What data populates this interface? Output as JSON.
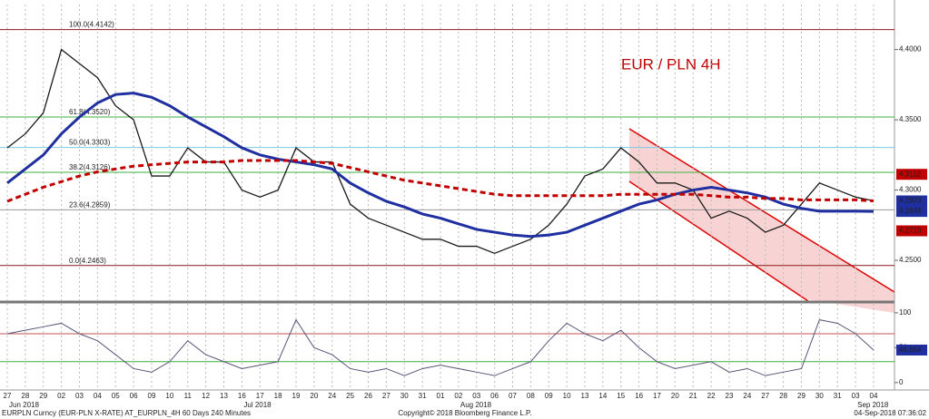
{
  "chart_data": [
    {
      "type": "line",
      "title": "EUR / PLN 4H",
      "categories": [
        "27",
        "28",
        "29",
        "02",
        "03",
        "04",
        "05",
        "06",
        "09",
        "10",
        "11",
        "12",
        "13",
        "16",
        "17",
        "18",
        "19",
        "20",
        "24",
        "25",
        "26",
        "27",
        "30",
        "31",
        "01",
        "02",
        "03",
        "06",
        "07",
        "08",
        "09",
        "10",
        "13",
        "14",
        "15",
        "16",
        "17",
        "20",
        "21",
        "22",
        "23",
        "24",
        "27",
        "28",
        "29",
        "30",
        "31",
        "03",
        "04"
      ],
      "months": [
        {
          "index": 0,
          "label": "Jun 2018"
        },
        {
          "index": 13,
          "label": "Jul 2018"
        },
        {
          "index": 25,
          "label": "Aug 2018"
        },
        {
          "index": 47,
          "label": "Sep 2018"
        }
      ],
      "series": [
        {
          "color": "#1a1a1a",
          "width": 1.3,
          "dash": false,
          "values": [
            4.33,
            4.34,
            4.355,
            4.4,
            4.39,
            4.38,
            4.36,
            4.35,
            4.31,
            4.31,
            4.33,
            4.32,
            4.32,
            4.3,
            4.295,
            4.3,
            4.33,
            4.32,
            4.32,
            4.29,
            4.28,
            4.275,
            4.27,
            4.265,
            4.265,
            4.26,
            4.26,
            4.255,
            4.26,
            4.265,
            4.275,
            4.29,
            4.31,
            4.315,
            4.33,
            4.32,
            4.305,
            4.305,
            4.3,
            4.28,
            4.285,
            4.28,
            4.27,
            4.275,
            4.29,
            4.305,
            4.3,
            4.295,
            4.2923
          ]
        },
        {
          "color": "#1f2fa0",
          "width": 3,
          "dash": false,
          "values": [
            4.305,
            4.315,
            4.325,
            4.34,
            4.352,
            4.362,
            4.368,
            4.369,
            4.366,
            4.36,
            4.352,
            4.345,
            4.338,
            4.33,
            4.325,
            4.322,
            4.32,
            4.318,
            4.315,
            4.305,
            4.298,
            4.292,
            4.288,
            4.283,
            4.28,
            4.276,
            4.272,
            4.27,
            4.268,
            4.267,
            4.268,
            4.27,
            4.275,
            4.28,
            4.285,
            4.29,
            4.293,
            4.297,
            4.3,
            4.302,
            4.3,
            4.298,
            4.295,
            4.29,
            4.287,
            4.285,
            4.285,
            4.285,
            4.2848
          ]
        },
        {
          "color": "#c00000",
          "width": 3,
          "dash": true,
          "values": [
            4.292,
            4.297,
            4.302,
            4.306,
            4.31,
            4.313,
            4.315,
            4.317,
            4.318,
            4.319,
            4.32,
            4.32,
            4.32,
            4.321,
            4.321,
            4.321,
            4.321,
            4.32,
            4.319,
            4.316,
            4.313,
            4.31,
            4.307,
            4.305,
            4.303,
            4.301,
            4.299,
            4.297,
            4.296,
            4.296,
            4.296,
            4.296,
            4.296,
            4.296,
            4.297,
            4.297,
            4.297,
            4.297,
            4.297,
            4.296,
            4.295,
            4.295,
            4.294,
            4.294,
            4.293,
            4.293,
            4.293,
            4.293,
            4.2923
          ]
        }
      ],
      "ylim": [
        4.221,
        4.432
      ],
      "yticks": [
        {
          "value": 4.25,
          "label": "4.2500"
        },
        {
          "value": 4.3,
          "label": "4.3000"
        },
        {
          "value": 4.35,
          "label": "4.3500"
        },
        {
          "value": 4.4,
          "label": "4.4000"
        }
      ],
      "fib_levels": [
        {
          "value": 4.4142,
          "label": "100.0(4.4142)",
          "color": "#8b1a1a"
        },
        {
          "value": 4.352,
          "label": "61.8(4.3520)",
          "color": "#3cb043"
        },
        {
          "value": 4.3303,
          "label": "50.0(4.3303)",
          "color": "#7ec8e3"
        },
        {
          "value": 4.3126,
          "label": "38.2(4.3126)",
          "color": "#3cb043"
        },
        {
          "value": 4.2859,
          "label": "23.6(4.2859)",
          "color": "#999999"
        },
        {
          "value": 4.2463,
          "label": "0.0(4.2463)",
          "color": "#8b1a1a"
        }
      ],
      "price_markers": [
        {
          "value": 4.3112,
          "label": "4.3112",
          "color": "#c00000"
        },
        {
          "value": 4.2923,
          "label": "4.2923",
          "color": "#1f2fa0"
        },
        {
          "value": 4.2848,
          "label": "4.2848",
          "color": "#1f2fa0"
        },
        {
          "value": 4.271,
          "label": "4.2710",
          "color": "#c00000"
        }
      ],
      "grid": true
    },
    {
      "type": "line",
      "series": [
        {
          "color": "#555577",
          "width": 1,
          "dash": false,
          "values": [
            70,
            75,
            80,
            85,
            70,
            60,
            40,
            20,
            15,
            30,
            60,
            40,
            30,
            20,
            25,
            30,
            90,
            50,
            40,
            20,
            15,
            20,
            10,
            20,
            25,
            20,
            15,
            10,
            20,
            30,
            60,
            85,
            70,
            60,
            75,
            50,
            30,
            20,
            25,
            30,
            15,
            20,
            10,
            15,
            20,
            90,
            85,
            70,
            46.654
          ]
        }
      ],
      "levels": [
        {
          "value": 70,
          "color": "#c0504d"
        },
        {
          "value": 30,
          "color": "#3cb043"
        }
      ],
      "ylim": [
        -8,
        109
      ],
      "yticks": [
        0,
        50,
        100
      ],
      "price_markers": [
        {
          "value": 46.654,
          "label": "46.654",
          "color": "#1f2fa0"
        }
      ]
    }
  ],
  "footer": {
    "left": "EURPLN Curncy (EUR-PLN X-RATE) AT_EURPLN_4H 60 Days 240 Minutes",
    "center": "Copyright© 2018 Bloomberg Finance L.P.",
    "right": "04-Sep-2018 07:36:02"
  }
}
